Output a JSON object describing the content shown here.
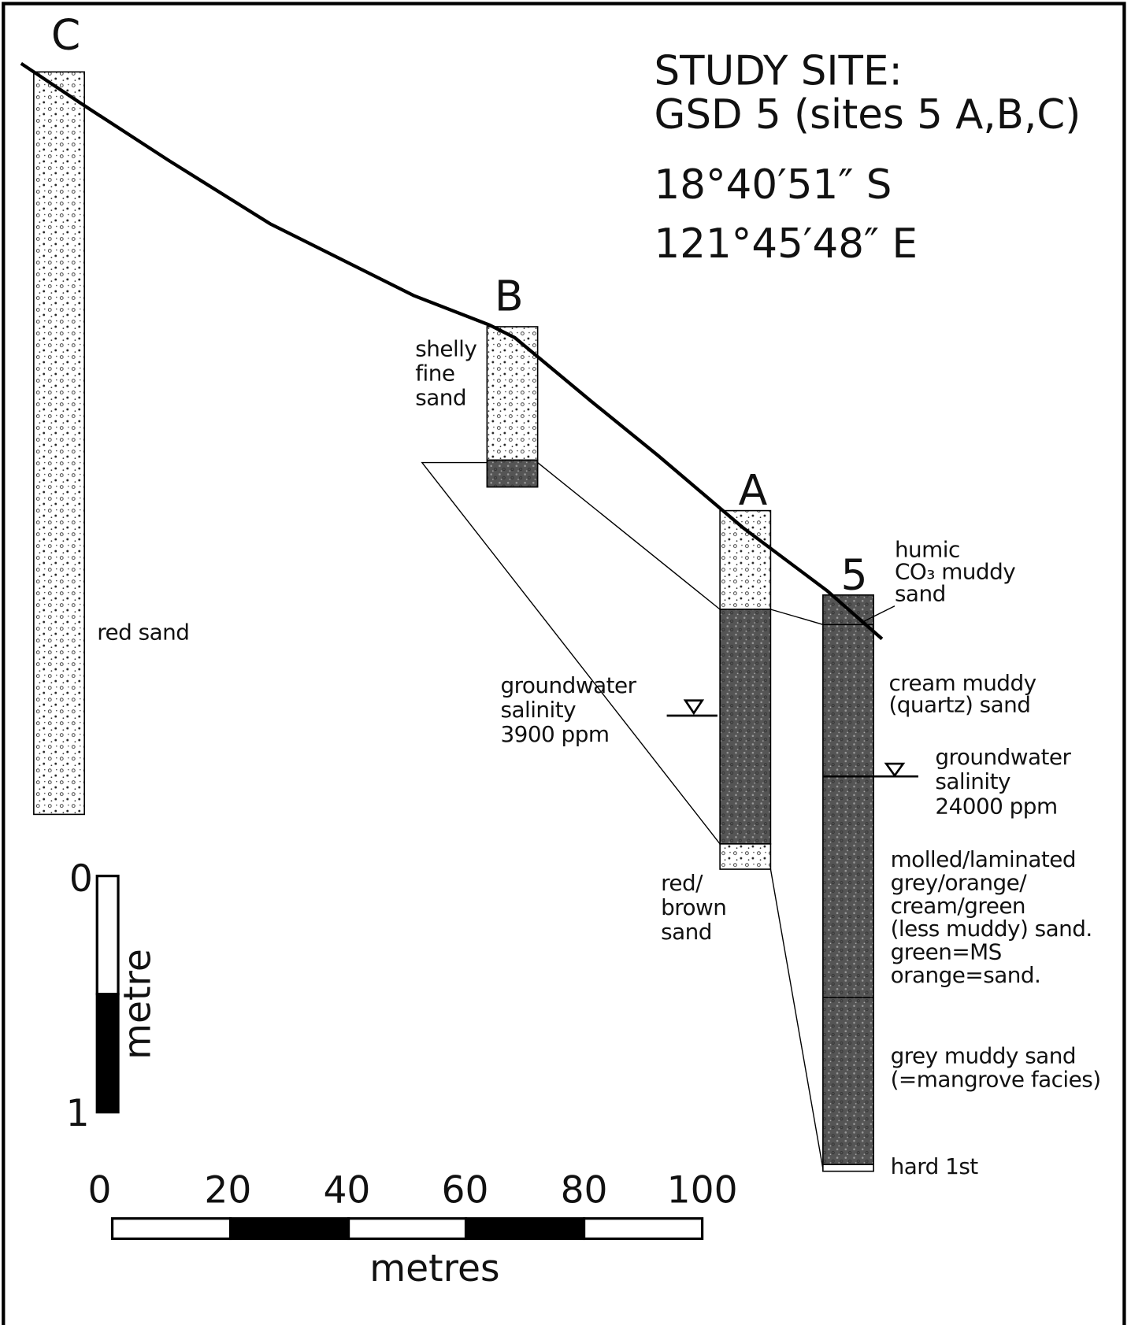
{
  "header": {
    "lines": [
      "STUDY SITE:",
      "GSD 5  (sites 5 A,B,C)",
      "18°40′51″ S",
      "121°45′48″ E"
    ]
  },
  "site_labels": [
    "C",
    "B",
    "A",
    "5"
  ],
  "annotations": {
    "red_sand": [
      "red sand"
    ],
    "shelly_fine_sand": [
      "shelly",
      "fine",
      "sand"
    ],
    "groundwater_a": [
      "groundwater",
      "salinity",
      "3900 ppm"
    ],
    "red_brown_sand": [
      "red/",
      "brown",
      "sand"
    ],
    "humic": [
      "humic",
      "CO₃ muddy",
      "sand"
    ],
    "cream": [
      "cream muddy",
      "(quartz) sand"
    ],
    "groundwater_5": [
      "groundwater",
      "salinity",
      "24000 ppm"
    ],
    "molled": [
      "molled/laminated",
      "grey/orange/",
      "cream/green",
      "(less muddy) sand.",
      "green=MS",
      "orange=sand."
    ],
    "grey": [
      "grey muddy sand",
      "(=mangrove facies)"
    ],
    "hard": [
      "hard 1st"
    ]
  },
  "scale": {
    "vertical": {
      "ticks": [
        0,
        1
      ],
      "label": "metre"
    },
    "horizontal": {
      "ticks": [
        0,
        20,
        40,
        60,
        80,
        100
      ],
      "label": "metres"
    }
  }
}
